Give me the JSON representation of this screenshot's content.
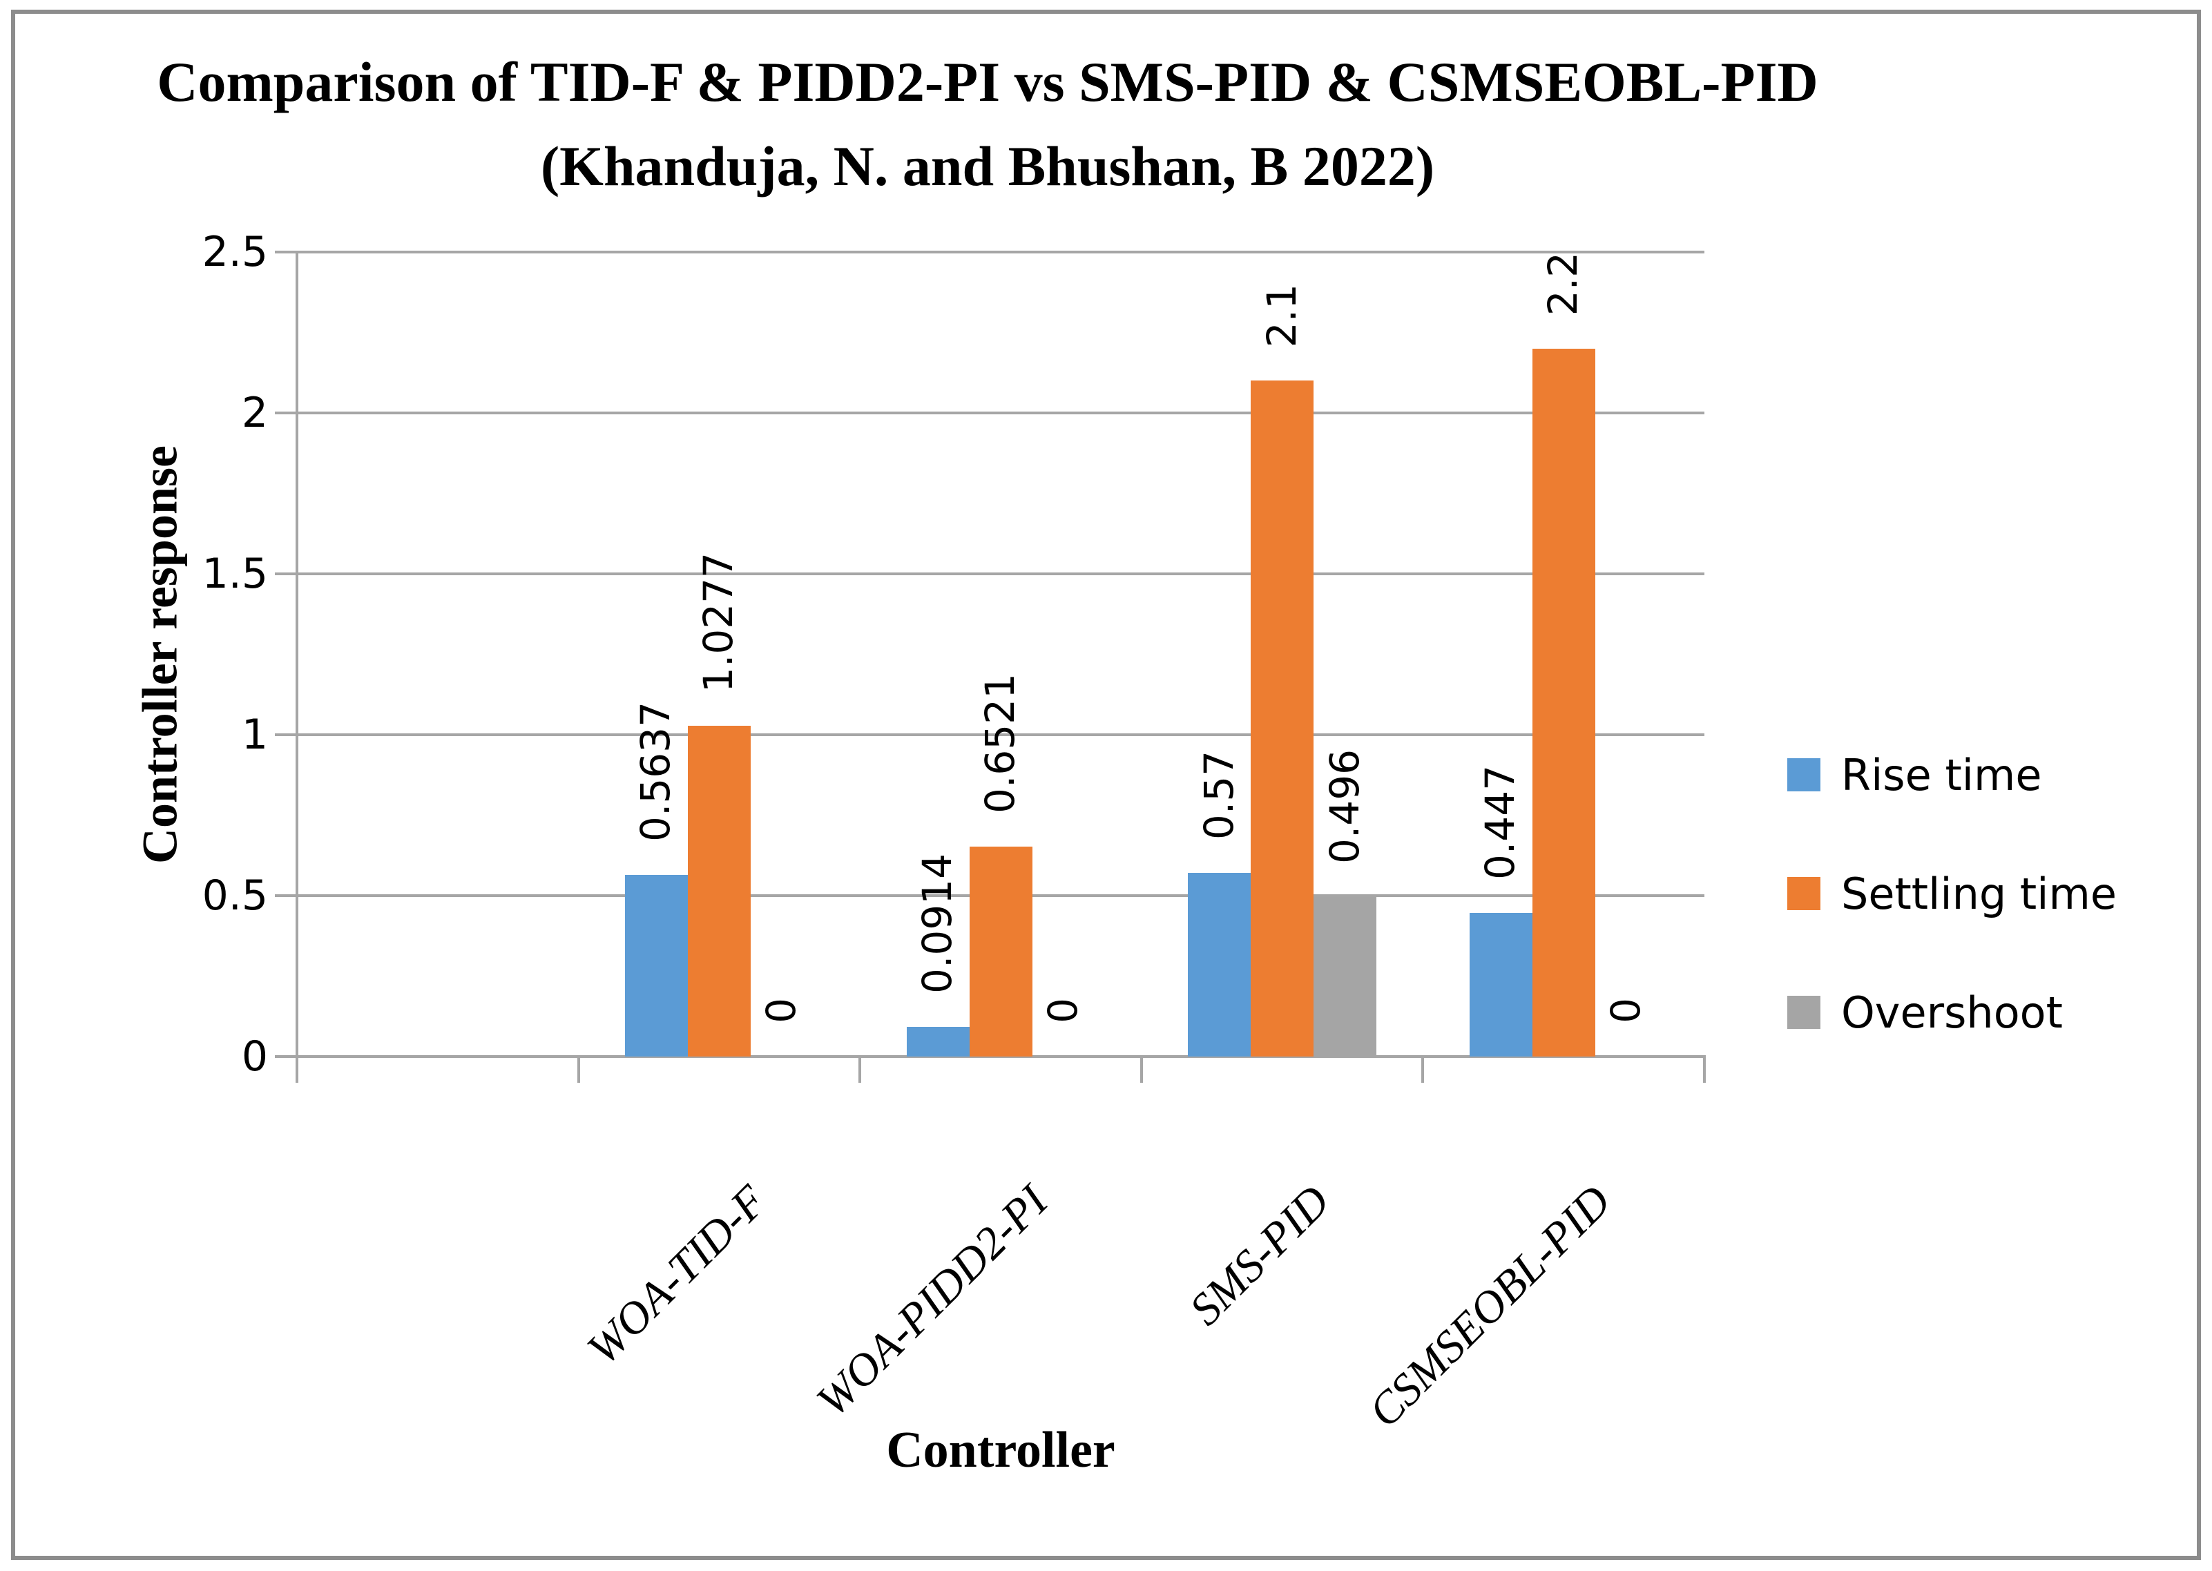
{
  "title": {
    "line1": "Comparison of TID-F & PIDD2-PI vs SMS-PID & CSMSEOBL-PID",
    "line2": "(Khanduja, N. and Bhushan, B 2022)"
  },
  "chart_data": {
    "type": "bar",
    "title": "Comparison of TID-F & PIDD2-PI vs SMS-PID & CSMSEOBL-PID (Khanduja, N. and Bhushan, B 2022)",
    "categories": [
      "WOA-TID-F",
      "WOA-PIDD2-PI",
      "SMS-PID",
      "CSMSEOBL-PID"
    ],
    "series": [
      {
        "name": "Rise time",
        "color": "#5B9BD5",
        "values": [
          0.5637,
          0.0914,
          0.57,
          0.447
        ],
        "labels": [
          "0.5637",
          "0.0914",
          "0.57",
          "0.447"
        ]
      },
      {
        "name": "Settling time",
        "color": "#ED7D31",
        "values": [
          1.0277,
          0.6521,
          2.1,
          2.2
        ],
        "labels": [
          "1.0277",
          "0.6521",
          "2.1",
          "2.2"
        ]
      },
      {
        "name": "Overshoot",
        "color": "#A5A5A5",
        "values": [
          0,
          0,
          0.496,
          0
        ],
        "labels": [
          "0",
          "0",
          "0.496",
          "0"
        ]
      }
    ],
    "xlabel": "Controller",
    "ylabel": "Controller response",
    "ylim": [
      0,
      2.5
    ],
    "yticks": [
      "0",
      "0.5",
      "1",
      "1.5",
      "2",
      "2.5"
    ],
    "grid": true,
    "legend_position": "right",
    "axis_color": "#A6A6A6",
    "frame_color": "#8C8C8C"
  }
}
